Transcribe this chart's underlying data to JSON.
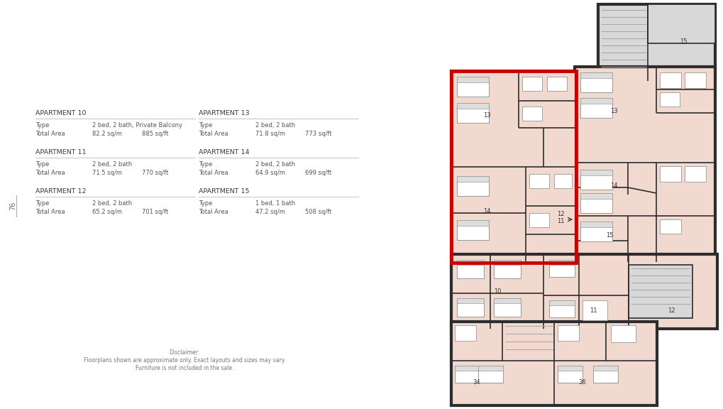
{
  "bg_color": "#ffffff",
  "floor_fill": "#f2d9d0",
  "wall_color": "#2d2d2d",
  "highlight_color": "#cc0000",
  "gray_fill": "#d0d0d0",
  "light_gray": "#e8e8e8",
  "text_color": "#555555",
  "page_number": "76",
  "disclaimer_line1": "Disclaimer:",
  "disclaimer_line2": "Floorplans shown are approximate only. Exact layouts and sizes may vary.",
  "disclaimer_line3": "Furniture is not included in the sale.",
  "apartments": [
    {
      "name": "APARTMENT 10",
      "type_label": "Type",
      "type_value": "2 bed, 2 bath, Private Balcony",
      "area_label": "Total Area",
      "area_sqm": "82.2 sq/m",
      "area_sqft": "885 sq/ft"
    },
    {
      "name": "APARTMENT 11",
      "type_label": "Type",
      "type_value": "2 bed, 2 bath",
      "area_label": "Total Area",
      "area_sqm": "71.5 sq/m",
      "area_sqft": "770 sq/ft"
    },
    {
      "name": "APARTMENT 12",
      "type_label": "Type",
      "type_value": "2 bed, 2 bath",
      "area_label": "Total Area",
      "area_sqm": "65.2 sq/m",
      "area_sqft": "701 sq/ft"
    },
    {
      "name": "APARTMENT 13",
      "type_label": "Type",
      "type_value": "2 bed, 2 bath",
      "area_label": "Total Area",
      "area_sqm": "71.8 sq/m",
      "area_sqft": "773 sq/ft"
    },
    {
      "name": "APARTMENT 14",
      "type_label": "Type",
      "type_value": "2 bed, 2 bath",
      "area_label": "Total Area",
      "area_sqm": "64.9 sq/m",
      "area_sqft": "699 sq/ft"
    },
    {
      "name": "APARTMENT 15",
      "type_label": "Type",
      "type_value": "1 bed, 1 bath",
      "area_label": "Total Area",
      "area_sqm": "47.2 sq/m",
      "area_sqft": "508 sq/ft"
    }
  ]
}
